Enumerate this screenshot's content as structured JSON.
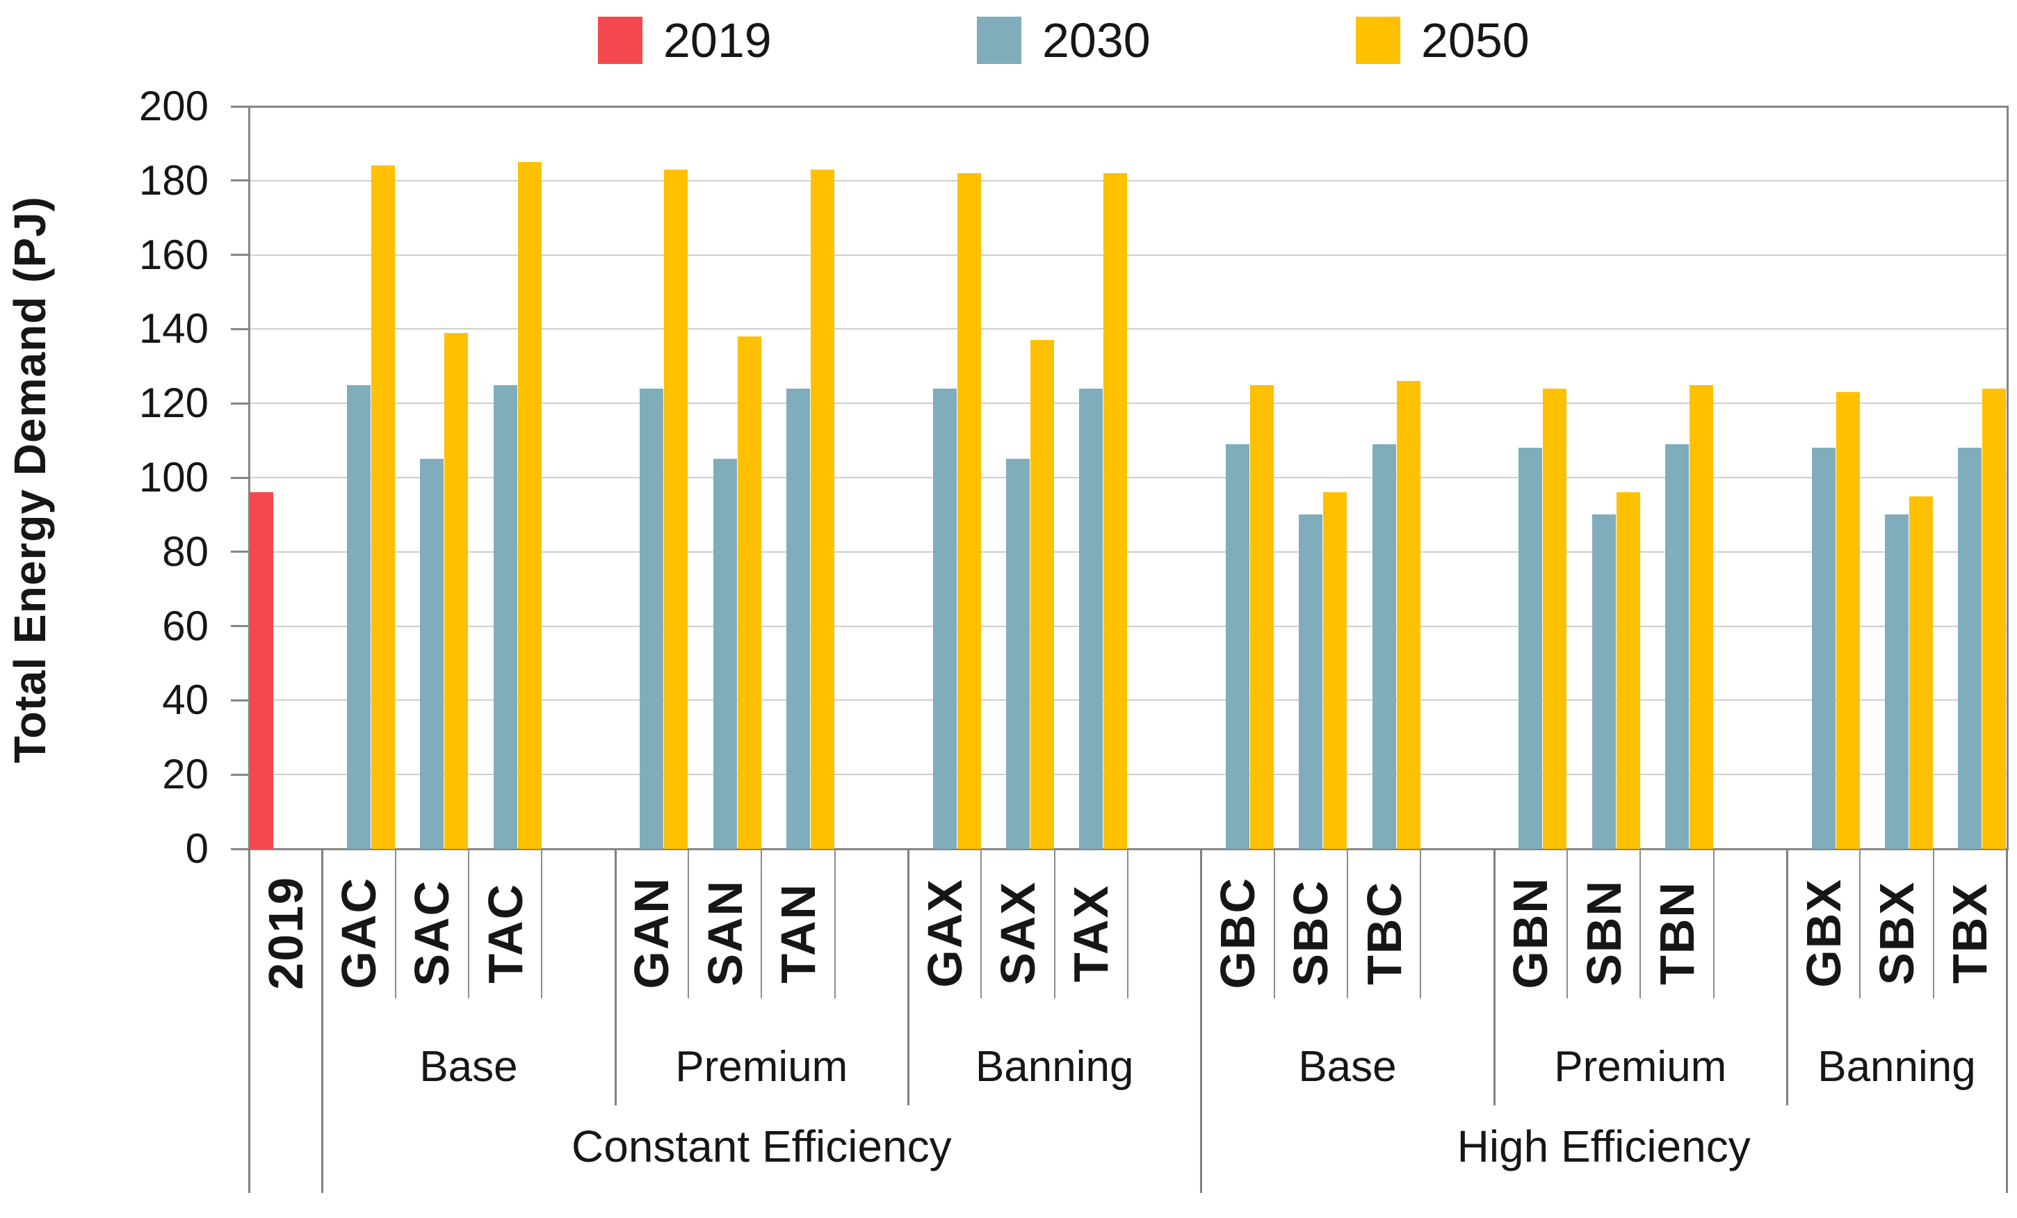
{
  "legend": {
    "items": [
      {
        "label": "2019",
        "color": "#F5484D"
      },
      {
        "label": "2030",
        "color": "#7FADBB"
      },
      {
        "label": "2050",
        "color": "#FFC000"
      }
    ]
  },
  "chart_data": {
    "type": "bar",
    "title": "",
    "xlabel": "",
    "ylabel": "Total Energy Demand (PJ)",
    "ylim": [
      0,
      200
    ],
    "ytick_step": 20,
    "grid": "horizontal",
    "legend_position": "top",
    "series": [
      {
        "name": "2019",
        "color": "#F5484D"
      },
      {
        "name": "2030",
        "color": "#7FADBB"
      },
      {
        "name": "2050",
        "color": "#FFC000"
      }
    ],
    "supergroups": [
      {
        "label": "",
        "groups": [
          {
            "label": "",
            "trailing_gap": false,
            "categories": [
              {
                "label": "2019",
                "values": [
                  96,
                  null,
                  null
                ]
              }
            ]
          }
        ]
      },
      {
        "label": "Constant Efficiency",
        "groups": [
          {
            "label": "Base",
            "trailing_gap": true,
            "categories": [
              {
                "label": "GAC",
                "values": [
                  null,
                  125,
                  184
                ]
              },
              {
                "label": "SAC",
                "values": [
                  null,
                  105,
                  139
                ]
              },
              {
                "label": "TAC",
                "values": [
                  null,
                  125,
                  185
                ]
              }
            ]
          },
          {
            "label": "Premium",
            "trailing_gap": true,
            "categories": [
              {
                "label": "GAN",
                "values": [
                  null,
                  124,
                  183
                ]
              },
              {
                "label": "SAN",
                "values": [
                  null,
                  105,
                  138
                ]
              },
              {
                "label": "TAN",
                "values": [
                  null,
                  124,
                  183
                ]
              }
            ]
          },
          {
            "label": "Banning",
            "trailing_gap": true,
            "categories": [
              {
                "label": "GAX",
                "values": [
                  null,
                  124,
                  182
                ]
              },
              {
                "label": "SAX",
                "values": [
                  null,
                  105,
                  137
                ]
              },
              {
                "label": "TAX",
                "values": [
                  null,
                  124,
                  182
                ]
              }
            ]
          }
        ]
      },
      {
        "label": "High Efficiency",
        "groups": [
          {
            "label": "Base",
            "trailing_gap": true,
            "categories": [
              {
                "label": "GBC",
                "values": [
                  null,
                  109,
                  125
                ]
              },
              {
                "label": "SBC",
                "values": [
                  null,
                  90,
                  96
                ]
              },
              {
                "label": "TBC",
                "values": [
                  null,
                  109,
                  126
                ]
              }
            ]
          },
          {
            "label": "Premium",
            "trailing_gap": true,
            "categories": [
              {
                "label": "GBN",
                "values": [
                  null,
                  108,
                  124
                ]
              },
              {
                "label": "SBN",
                "values": [
                  null,
                  90,
                  96
                ]
              },
              {
                "label": "TBN",
                "values": [
                  null,
                  109,
                  125
                ]
              }
            ]
          },
          {
            "label": "Banning",
            "trailing_gap": false,
            "categories": [
              {
                "label": "GBX",
                "values": [
                  null,
                  108,
                  123
                ]
              },
              {
                "label": "SBX",
                "values": [
                  null,
                  90,
                  95
                ]
              },
              {
                "label": "TBX",
                "values": [
                  null,
                  108,
                  124
                ]
              }
            ]
          }
        ]
      }
    ]
  }
}
